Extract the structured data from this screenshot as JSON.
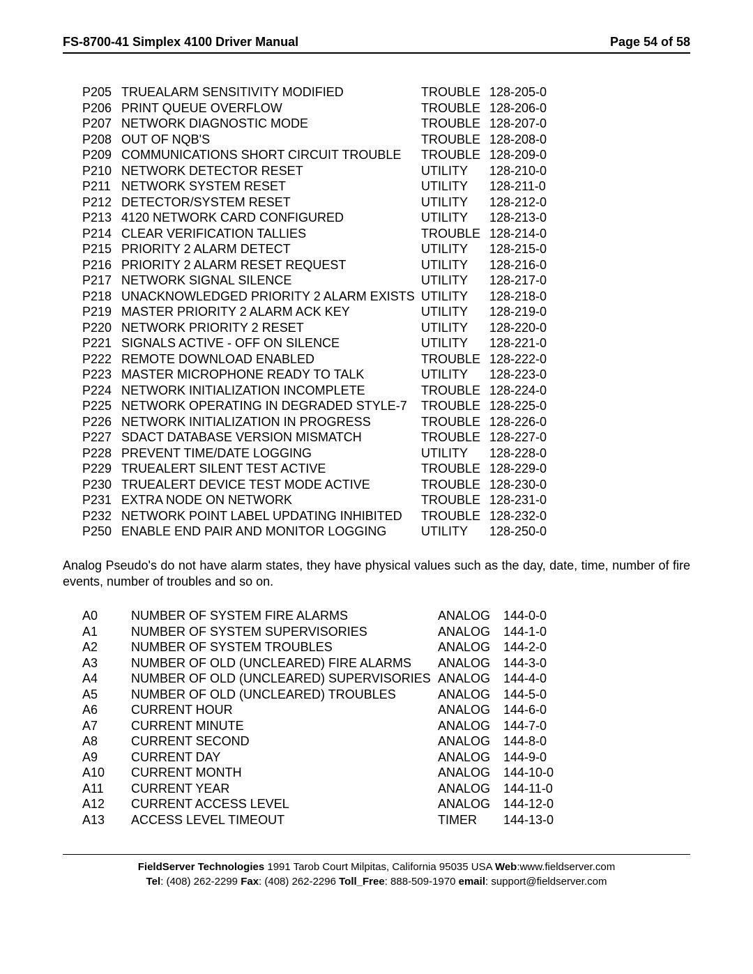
{
  "header": {
    "left": "FS-8700-41 Simplex 4100 Driver Manual",
    "right": "Page 54 of 58"
  },
  "pseudo_rows": [
    {
      "id": "P205",
      "desc": "TRUEALARM SENSITIVITY MODIFIED",
      "type": "TROUBLE",
      "code": "128-205-0"
    },
    {
      "id": "P206",
      "desc": "PRINT QUEUE OVERFLOW",
      "type": "TROUBLE",
      "code": "128-206-0"
    },
    {
      "id": "P207",
      "desc": "NETWORK DIAGNOSTIC MODE",
      "type": "TROUBLE",
      "code": "128-207-0"
    },
    {
      "id": "P208",
      "desc": "OUT OF NQB'S",
      "type": "TROUBLE",
      "code": "128-208-0"
    },
    {
      "id": "P209",
      "desc": "COMMUNICATIONS SHORT CIRCUIT TROUBLE",
      "type": "TROUBLE",
      "code": "128-209-0"
    },
    {
      "id": "P210",
      "desc": "NETWORK DETECTOR RESET",
      "type": "UTILITY",
      "code": "128-210-0"
    },
    {
      "id": "P211",
      "desc": "NETWORK SYSTEM RESET",
      "type": "UTILITY",
      "code": "128-211-0"
    },
    {
      "id": "P212",
      "desc": "DETECTOR/SYSTEM RESET",
      "type": "UTILITY",
      "code": "128-212-0"
    },
    {
      "id": "P213",
      "desc": "4120 NETWORK CARD CONFIGURED",
      "type": "UTILITY",
      "code": "128-213-0"
    },
    {
      "id": "P214",
      "desc": "CLEAR VERIFICATION TALLIES",
      "type": "TROUBLE",
      "code": "128-214-0"
    },
    {
      "id": "P215",
      "desc": "PRIORITY 2 ALARM DETECT",
      "type": "UTILITY",
      "code": "128-215-0"
    },
    {
      "id": "P216",
      "desc": "PRIORITY 2 ALARM RESET REQUEST",
      "type": "UTILITY",
      "code": "128-216-0"
    },
    {
      "id": "P217",
      "desc": "NETWORK SIGNAL SILENCE",
      "type": "UTILITY",
      "code": "128-217-0"
    },
    {
      "id": "P218",
      "desc": "UNACKNOWLEDGED PRIORITY 2 ALARM EXISTS",
      "type": "UTILITY",
      "code": "128-218-0"
    },
    {
      "id": "P219",
      "desc": "MASTER PRIORITY 2 ALARM ACK KEY",
      "type": "UTILITY",
      "code": "128-219-0"
    },
    {
      "id": "P220",
      "desc": "NETWORK PRIORITY 2 RESET",
      "type": "UTILITY",
      "code": "128-220-0"
    },
    {
      "id": "P221",
      "desc": "SIGNALS ACTIVE - OFF ON SILENCE",
      "type": "UTILITY",
      "code": "128-221-0"
    },
    {
      "id": "P222",
      "desc": "REMOTE DOWNLOAD ENABLED",
      "type": "TROUBLE",
      "code": "128-222-0"
    },
    {
      "id": "P223",
      "desc": "MASTER MICROPHONE READY TO TALK",
      "type": "UTILITY",
      "code": "128-223-0"
    },
    {
      "id": "P224",
      "desc": "NETWORK INITIALIZATION INCOMPLETE",
      "type": "TROUBLE",
      "code": "128-224-0"
    },
    {
      "id": "P225",
      "desc": "NETWORK OPERATING IN DEGRADED STYLE-7",
      "type": "TROUBLE",
      "code": "128-225-0"
    },
    {
      "id": "P226",
      "desc": "NETWORK INITIALIZATION IN PROGRESS",
      "type": "TROUBLE",
      "code": "128-226-0"
    },
    {
      "id": "P227",
      "desc": "SDACT DATABASE VERSION MISMATCH",
      "type": "TROUBLE",
      "code": "128-227-0"
    },
    {
      "id": "P228",
      "desc": "PREVENT TIME/DATE LOGGING",
      "type": "UTILITY",
      "code": "128-228-0"
    },
    {
      "id": "P229",
      "desc": "TRUEALERT SILENT TEST ACTIVE",
      "type": "TROUBLE",
      "code": "128-229-0"
    },
    {
      "id": "P230",
      "desc": "TRUEALERT DEVICE TEST MODE ACTIVE",
      "type": "TROUBLE",
      "code": "128-230-0"
    },
    {
      "id": "P231",
      "desc": "EXTRA NODE ON NETWORK",
      "type": "TROUBLE",
      "code": "128-231-0"
    },
    {
      "id": "P232",
      "desc": "NETWORK POINT LABEL UPDATING INHIBITED",
      "type": "TROUBLE",
      "code": "128-232-0"
    },
    {
      "id": "P250",
      "desc": "ENABLE END PAIR AND MONITOR LOGGING",
      "type": "UTILITY",
      "code": "128-250-0"
    }
  ],
  "paragraph": "Analog Pseudo's do not have alarm states, they have physical values such as the day, date, time, number of fire events, number of troubles and so on.",
  "analog_rows": [
    {
      "id": "A0",
      "desc": "NUMBER OF SYSTEM FIRE ALARMS",
      "type": "ANALOG",
      "code": "144-0-0"
    },
    {
      "id": "A1",
      "desc": "NUMBER OF SYSTEM SUPERVISORIES",
      "type": "ANALOG",
      "code": "144-1-0"
    },
    {
      "id": "A2",
      "desc": "NUMBER OF SYSTEM TROUBLES",
      "type": "ANALOG",
      "code": "144-2-0"
    },
    {
      "id": "A3",
      "desc": "NUMBER OF OLD (UNCLEARED) FIRE ALARMS",
      "type": "ANALOG",
      "code": "144-3-0"
    },
    {
      "id": "A4",
      "desc": "NUMBER OF OLD (UNCLEARED) SUPERVISORIES",
      "type": "ANALOG",
      "code": "144-4-0"
    },
    {
      "id": "A5",
      "desc": "NUMBER OF OLD (UNCLEARED) TROUBLES",
      "type": "ANALOG",
      "code": "144-5-0"
    },
    {
      "id": "A6",
      "desc": "CURRENT HOUR",
      "type": "ANALOG",
      "code": "144-6-0"
    },
    {
      "id": "A7",
      "desc": "CURRENT MINUTE",
      "type": "ANALOG",
      "code": "144-7-0"
    },
    {
      "id": "A8",
      "desc": "CURRENT SECOND",
      "type": "ANALOG",
      "code": "144-8-0"
    },
    {
      "id": "A9",
      "desc": "CURRENT DAY",
      "type": "ANALOG",
      "code": "144-9-0"
    },
    {
      "id": "A10",
      "desc": "CURRENT MONTH",
      "type": "ANALOG",
      "code": "144-10-0"
    },
    {
      "id": "A11",
      "desc": "CURRENT YEAR",
      "type": "ANALOG",
      "code": "144-11-0"
    },
    {
      "id": "A12",
      "desc": "CURRENT ACCESS LEVEL",
      "type": "ANALOG",
      "code": "144-12-0"
    },
    {
      "id": "A13",
      "desc": "ACCESS LEVEL TIMEOUT",
      "type": "TIMER",
      "code": "144-13-0"
    }
  ],
  "footer": {
    "line1_parts": {
      "company_label": "FieldServer Technologies",
      "address": " 1991 Tarob Court Milpitas, California 95035 USA  ",
      "web_label": "Web",
      "web_value": ":www.fieldserver.com"
    },
    "line2_parts": {
      "tel_label": "Tel",
      "tel_value": ": (408) 262-2299  ",
      "fax_label": "Fax",
      "fax_value": ": (408) 262-2296  ",
      "toll_label": "Toll_Free",
      "toll_value": ": 888-509-1970  ",
      "email_label": "email",
      "email_value": ": support@fieldserver.com"
    }
  }
}
